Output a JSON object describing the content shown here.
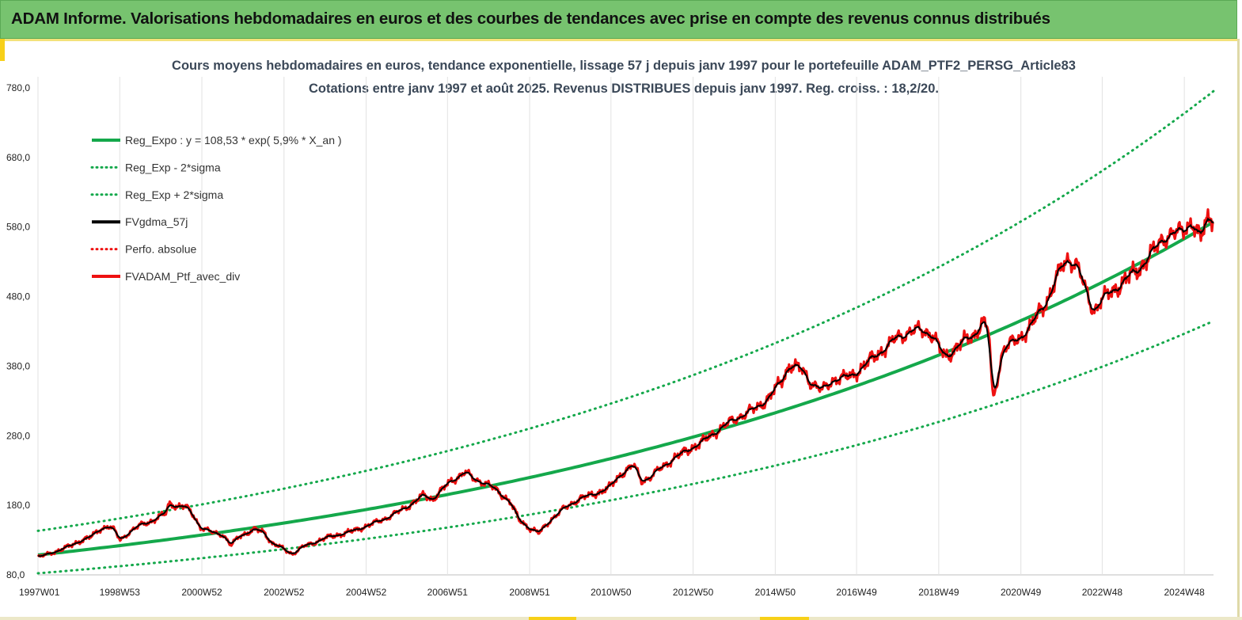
{
  "header": {
    "title": "ADAM Informe. Valorisations hebdomadaires en euros et des courbes de tendances avec prise en compte des revenus connus distribués"
  },
  "colors": {
    "header_bg": "#77c36f",
    "accent_yellow": "#f7d019",
    "trend_green": "#14a84b",
    "price_red": "#ee1111",
    "smooth_black": "#000000"
  },
  "chart_data": {
    "type": "line",
    "title_line1": "Cours moyens hebdomadaires  en euros, tendance exponentielle, lissage 57 j depuis janv 1997 pour le portefeuille ADAM_PTF2_PERSG_Article83",
    "title_line2": "Cotations  entre janv 1997 et août 2025. Revenus DISTRIBUES depuis janv 1997. Reg. croiss. : 18,2/20.",
    "xlabel": "",
    "ylabel": "",
    "x_range": [
      1997.0,
      2025.62
    ],
    "ylim": [
      80,
      780
    ],
    "y_ticks": [
      "80,0",
      "180,0",
      "280,0",
      "380,0",
      "480,0",
      "580,0",
      "680,0",
      "780,0"
    ],
    "x_ticks": [
      {
        "label": "1997W01",
        "year": 1997.0
      },
      {
        "label": "1998W53",
        "year": 1998.99
      },
      {
        "label": "2000W52",
        "year": 2000.99
      },
      {
        "label": "2002W52",
        "year": 2002.99
      },
      {
        "label": "2004W52",
        "year": 2004.99
      },
      {
        "label": "2006W51",
        "year": 2006.97
      },
      {
        "label": "2008W51",
        "year": 2008.97
      },
      {
        "label": "2010W50",
        "year": 2010.95
      },
      {
        "label": "2012W50",
        "year": 2012.95
      },
      {
        "label": "2014W50",
        "year": 2014.95
      },
      {
        "label": "2016W49",
        "year": 2016.93
      },
      {
        "label": "2018W49",
        "year": 2018.93
      },
      {
        "label": "2020W49",
        "year": 2020.93
      },
      {
        "label": "2022W48",
        "year": 2022.91
      },
      {
        "label": "2024W48",
        "year": 2024.91
      }
    ],
    "grid": "vertical",
    "legend_position": "top-left",
    "trend": {
      "base": 108.53,
      "rate": 0.059,
      "sigma_factor": 1.32
    },
    "series": [
      {
        "name": "Reg_Expo : y = 108,53 * exp( 5,9% *  X_an )",
        "color": "#14a84b",
        "style": "solid"
      },
      {
        "name": "Reg_Exp - 2*sigma",
        "color": "#14a84b",
        "style": "dotted"
      },
      {
        "name": "Reg_Exp + 2*sigma",
        "color": "#14a84b",
        "style": "dotted"
      },
      {
        "name": "FVgdma_57j",
        "color": "#000000",
        "style": "solid"
      },
      {
        "name": "Perfo. absolue",
        "color": "#ee1111",
        "style": "dotted"
      },
      {
        "name": "FVADAM_Ptf_avec_div",
        "color": "#ee1111",
        "style": "solid"
      }
    ],
    "price_points": [
      [
        1997.0,
        105
      ],
      [
        1997.5,
        115
      ],
      [
        1997.8,
        122
      ],
      [
        1998.0,
        128
      ],
      [
        1998.3,
        135
      ],
      [
        1998.5,
        145
      ],
      [
        1998.7,
        150
      ],
      [
        1998.85,
        145
      ],
      [
        1999.0,
        130
      ],
      [
        1999.2,
        140
      ],
      [
        1999.5,
        152
      ],
      [
        1999.8,
        158
      ],
      [
        2000.1,
        168
      ],
      [
        2000.2,
        183
      ],
      [
        2000.4,
        178
      ],
      [
        2000.6,
        178
      ],
      [
        2000.8,
        165
      ],
      [
        2000.95,
        148
      ],
      [
        2001.2,
        142
      ],
      [
        2001.5,
        138
      ],
      [
        2001.7,
        122
      ],
      [
        2001.9,
        136
      ],
      [
        2002.3,
        145
      ],
      [
        2002.5,
        142
      ],
      [
        2002.7,
        125
      ],
      [
        2002.9,
        120
      ],
      [
        2003.2,
        110
      ],
      [
        2003.5,
        122
      ],
      [
        2003.8,
        128
      ],
      [
        2004.1,
        135
      ],
      [
        2004.5,
        140
      ],
      [
        2005.0,
        150
      ],
      [
        2005.5,
        162
      ],
      [
        2006.0,
        178
      ],
      [
        2006.4,
        195
      ],
      [
        2006.6,
        188
      ],
      [
        2007.0,
        212
      ],
      [
        2007.4,
        228
      ],
      [
        2007.6,
        218
      ],
      [
        2007.9,
        212
      ],
      [
        2008.2,
        200
      ],
      [
        2008.5,
        185
      ],
      [
        2008.7,
        160
      ],
      [
        2008.95,
        148
      ],
      [
        2009.2,
        140
      ],
      [
        2009.5,
        160
      ],
      [
        2009.8,
        175
      ],
      [
        2010.2,
        190
      ],
      [
        2010.5,
        195
      ],
      [
        2010.9,
        205
      ],
      [
        2011.2,
        225
      ],
      [
        2011.5,
        238
      ],
      [
        2011.7,
        215
      ],
      [
        2011.9,
        220
      ],
      [
        2012.2,
        235
      ],
      [
        2012.5,
        248
      ],
      [
        2012.9,
        262
      ],
      [
        2013.2,
        272
      ],
      [
        2013.6,
        290
      ],
      [
        2014.0,
        305
      ],
      [
        2014.5,
        320
      ],
      [
        2014.8,
        335
      ],
      [
        2015.1,
        358
      ],
      [
        2015.3,
        382
      ],
      [
        2015.6,
        375
      ],
      [
        2015.8,
        358
      ],
      [
        2016.1,
        345
      ],
      [
        2016.4,
        362
      ],
      [
        2016.8,
        365
      ],
      [
        2017.2,
        385
      ],
      [
        2017.6,
        405
      ],
      [
        2017.9,
        420
      ],
      [
        2018.3,
        432
      ],
      [
        2018.6,
        430
      ],
      [
        2018.8,
        425
      ],
      [
        2018.95,
        405
      ],
      [
        2019.1,
        392
      ],
      [
        2019.4,
        410
      ],
      [
        2019.8,
        425
      ],
      [
        2020.0,
        445
      ],
      [
        2020.15,
        430
      ],
      [
        2020.25,
        330
      ],
      [
        2020.5,
        405
      ],
      [
        2020.9,
        420
      ],
      [
        2021.2,
        440
      ],
      [
        2021.6,
        478
      ],
      [
        2021.9,
        520
      ],
      [
        2022.1,
        535
      ],
      [
        2022.3,
        525
      ],
      [
        2022.5,
        490
      ],
      [
        2022.7,
        460
      ],
      [
        2022.9,
        475
      ],
      [
        2023.2,
        490
      ],
      [
        2023.5,
        505
      ],
      [
        2023.8,
        520
      ],
      [
        2024.1,
        540
      ],
      [
        2024.4,
        565
      ],
      [
        2024.8,
        572
      ],
      [
        2025.1,
        588
      ],
      [
        2025.3,
        560
      ],
      [
        2025.45,
        590
      ],
      [
        2025.62,
        598
      ]
    ]
  }
}
